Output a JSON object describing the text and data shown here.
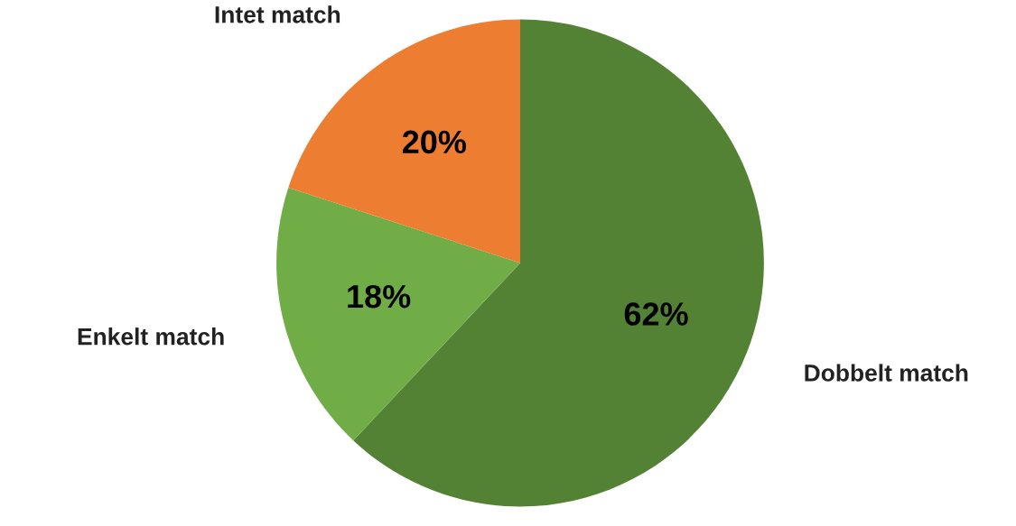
{
  "chart_data": {
    "type": "pie",
    "categories": [
      "Dobbelt match",
      "Enkelt match",
      "Intet match"
    ],
    "values": [
      62,
      18,
      20
    ],
    "colors": [
      "#548235",
      "#70ad47",
      "#ed7d31"
    ],
    "value_labels": [
      "62%",
      "18%",
      "20%"
    ],
    "legend": false
  }
}
